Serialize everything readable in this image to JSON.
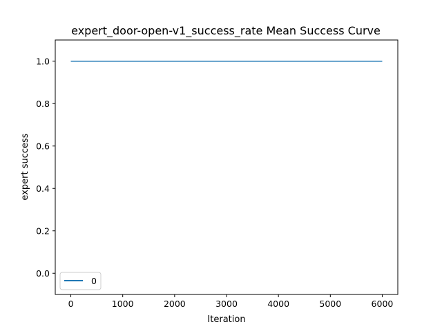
{
  "chart_data": {
    "type": "line",
    "title": "expert_door-open-v1_success_rate Mean Success Curve",
    "xlabel": "Iteration",
    "ylabel": "expert success",
    "xlim": [
      -300,
      6300
    ],
    "ylim": [
      -0.1,
      1.1
    ],
    "xticks": [
      0,
      1000,
      2000,
      3000,
      4000,
      5000,
      6000
    ],
    "yticks": [
      0.0,
      0.2,
      0.4,
      0.6,
      0.8,
      1.0
    ],
    "xtick_labels": [
      "0",
      "1000",
      "2000",
      "3000",
      "4000",
      "5000",
      "6000"
    ],
    "ytick_labels": [
      "0.0",
      "0.2",
      "0.4",
      "0.6",
      "0.8",
      "1.0"
    ],
    "grid": false,
    "legend_position": "lower-left",
    "series": [
      {
        "name": "0",
        "color": "#1f77b4",
        "x": [
          0,
          6000
        ],
        "y": [
          1.0,
          1.0
        ]
      }
    ]
  }
}
